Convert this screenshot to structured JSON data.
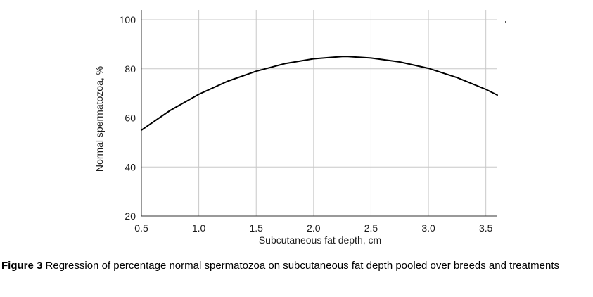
{
  "chart_data": {
    "type": "line",
    "title": "",
    "xlabel": "Subcutaneous fat depth, cm",
    "ylabel": "Normal spermatozoa, %",
    "xlim": [
      0.5,
      3.6
    ],
    "ylim": [
      20,
      100
    ],
    "x_ticks": [
      0.5,
      1.0,
      1.5,
      2.0,
      2.5,
      3.0,
      3.5
    ],
    "x_tick_labels": [
      "0.5",
      "1.0",
      "1.5",
      "2.0",
      "2.5",
      "3.0",
      "3.5"
    ],
    "y_ticks": [
      20,
      40,
      60,
      80,
      100
    ],
    "y_tick_labels": [
      "20",
      "40",
      "60",
      "80",
      "100"
    ],
    "grid": true,
    "series": [
      {
        "color": "#000000",
        "x": [
          0.5,
          0.75,
          1.0,
          1.25,
          1.5,
          1.75,
          2.0,
          2.25,
          2.3,
          2.5,
          2.75,
          3.0,
          3.25,
          3.5,
          3.6
        ],
        "y": [
          55.0,
          63.0,
          69.6,
          74.9,
          79.0,
          82.1,
          84.1,
          85.0,
          85.0,
          84.4,
          82.8,
          80.2,
          76.4,
          71.6,
          69.3
        ]
      }
    ]
  },
  "caption": {
    "label": "Figure 3",
    "text": " Regression of percentage normal spermatozoa on subcutaneous fat depth pooled over breeds and treatments"
  }
}
